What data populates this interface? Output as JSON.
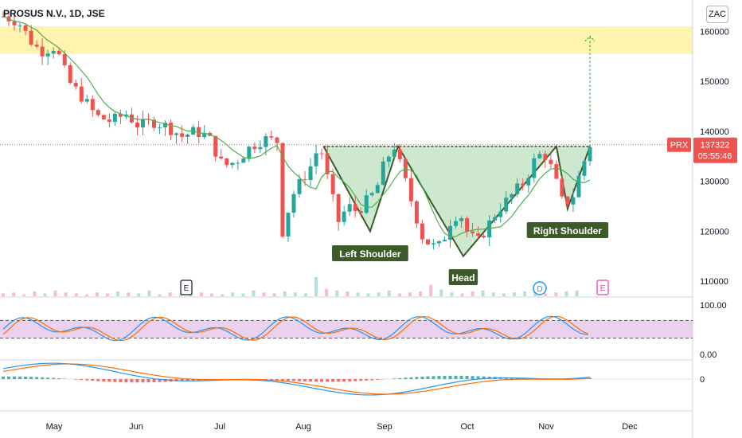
{
  "header": {
    "title": "PROSUS N.V., 1D, JSE",
    "currency_button": "ZAC"
  },
  "price_badge": {
    "symbol": "PRX",
    "price": "137322",
    "countdown": "05:55:46"
  },
  "pattern_labels": {
    "left": "Left Shoulder",
    "head": "Head",
    "right": "Right Shoulder"
  },
  "events": [
    "E",
    "D",
    "E"
  ],
  "colors": {
    "up": "#26a69a",
    "down": "#ef5350",
    "ma": "#4caf50",
    "target_zone": "#fff3b0",
    "pattern_fill": "#a5d6a7",
    "pattern_line": "#3c5a2a",
    "osc_band": "#e1bee7",
    "k_line": "#2196f3",
    "d_line": "#ff6d00"
  },
  "chart_data": [
    {
      "type": "candlestick",
      "title": "PROSUS N.V., 1D, JSE",
      "x_tick_labels": [
        "May",
        "Jun",
        "Jul",
        "Aug",
        "Sep",
        "Oct",
        "Nov",
        "Dec"
      ],
      "y_tick_labels": [
        "160000",
        "150000",
        "140000",
        "130000",
        "120000",
        "110000"
      ],
      "ylim": [
        107000,
        165000
      ],
      "last_price": 137322,
      "price_path": [
        [
          0,
          163000
        ],
        [
          8,
          162000
        ],
        [
          15,
          158000
        ],
        [
          20,
          156000
        ],
        [
          28,
          157000
        ],
        [
          35,
          150000
        ],
        [
          42,
          147000
        ],
        [
          50,
          143000
        ],
        [
          58,
          142000
        ],
        [
          66,
          143500
        ],
        [
          73,
          141000
        ],
        [
          80,
          142000
        ],
        [
          88,
          141000
        ],
        [
          96,
          139000
        ],
        [
          103,
          140000
        ],
        [
          110,
          139000
        ],
        [
          118,
          133000
        ],
        [
          125,
          134000
        ],
        [
          133,
          137000
        ],
        [
          140,
          138500
        ],
        [
          147,
          138000
        ],
        [
          150,
          120000
        ],
        [
          155,
          127000
        ],
        [
          160,
          130000
        ],
        [
          165,
          133000
        ],
        [
          170,
          137500
        ],
        [
          175,
          129000
        ],
        [
          180,
          122000
        ],
        [
          185,
          125000
        ],
        [
          190,
          124000
        ],
        [
          195,
          126000
        ],
        [
          200,
          128000
        ],
        [
          205,
          134000
        ],
        [
          210,
          137000
        ],
        [
          215,
          131000
        ],
        [
          220,
          125000
        ],
        [
          225,
          119000
        ],
        [
          230,
          117000
        ],
        [
          235,
          117000
        ],
        [
          240,
          122000
        ],
        [
          245,
          124000
        ],
        [
          250,
          119000
        ],
        [
          255,
          118000
        ],
        [
          260,
          121000
        ],
        [
          265,
          124000
        ],
        [
          270,
          126000
        ],
        [
          275,
          128000
        ],
        [
          280,
          130000
        ],
        [
          285,
          134000
        ],
        [
          290,
          136000
        ],
        [
          295,
          132000
        ],
        [
          300,
          126000
        ],
        [
          305,
          126000
        ],
        [
          310,
          132000
        ],
        [
          315,
          137322
        ]
      ],
      "volume": [
        3,
        4,
        2,
        5,
        3,
        6,
        4,
        3,
        2,
        4,
        3,
        5,
        4,
        3,
        6,
        2,
        4,
        3,
        5,
        4,
        3,
        2,
        4,
        3,
        6,
        4,
        3,
        5,
        4,
        3,
        20,
        8,
        6,
        5,
        4,
        3,
        4,
        6,
        3,
        4,
        5,
        12,
        7,
        4,
        3,
        5,
        6,
        4,
        3,
        4,
        5,
        6,
        3,
        4,
        5,
        6
      ],
      "pattern": {
        "neckline": 137000,
        "left_shoulder_low": 120000,
        "head_low": 115000,
        "right_shoulder_low": 124500,
        "target": 159000
      },
      "target_zone": [
        155500,
        161000
      ],
      "moving_average": true
    },
    {
      "type": "line",
      "name": "stochastic",
      "y_tick_labels": [
        "100.00",
        "0.00"
      ],
      "ylim": [
        0,
        100
      ],
      "upper_band": 80,
      "lower_band": 20
    },
    {
      "type": "bar",
      "name": "macd",
      "y_tick_labels": [
        "0"
      ]
    }
  ]
}
